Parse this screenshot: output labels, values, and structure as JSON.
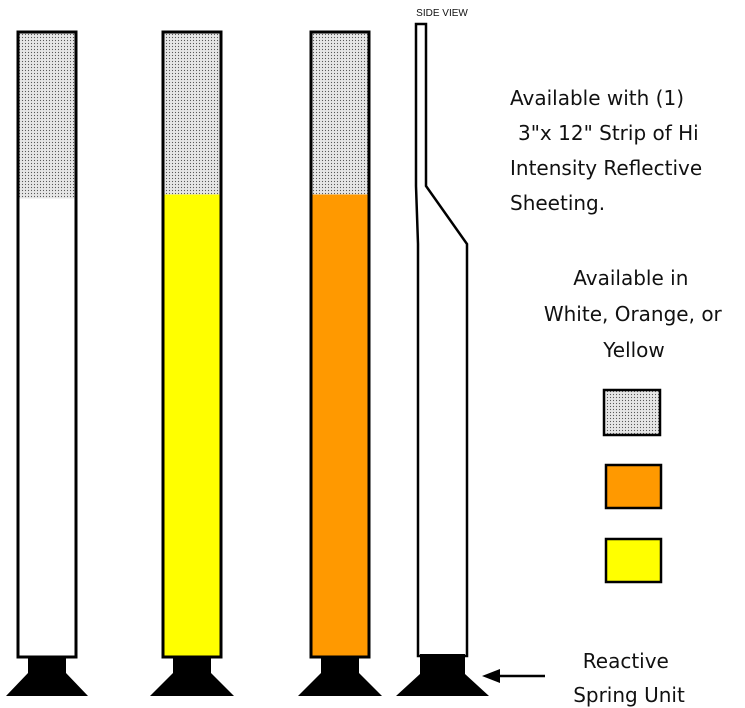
{
  "labels": {
    "side_view": "SIDE VIEW",
    "availability_lines": [
      "Available with (1)",
      "3\"x 12\" Strip of Hi",
      "Intensity Reflective",
      "Sheeting."
    ],
    "colors_lines": [
      "Available in",
      "White, Orange, or",
      "Yellow"
    ],
    "spring_lines": [
      "Reactive",
      "Spring Unit"
    ]
  },
  "posts": [
    {
      "name": "white-post",
      "body_color": "#ffffff"
    },
    {
      "name": "yellow-post",
      "body_color": "#ffff00"
    },
    {
      "name": "orange-post",
      "body_color": "#ff9900"
    }
  ],
  "swatches": [
    {
      "name": "reflective-swatch",
      "fill": "pattern"
    },
    {
      "name": "orange-swatch",
      "fill": "#ff9900"
    },
    {
      "name": "yellow-swatch",
      "fill": "#ffff00"
    }
  ],
  "colors": {
    "outline": "#000000",
    "reflective_dot": "#555555",
    "reflective_bg": "#e6e6e6"
  }
}
